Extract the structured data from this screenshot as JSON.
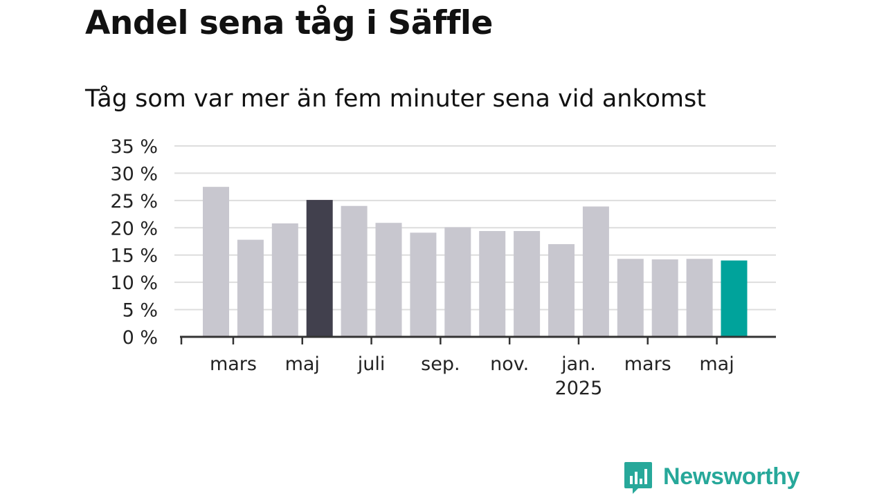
{
  "title": "Andel sena tåg i Säffle",
  "subtitle": "Tåg som var mer än fem minuter sena vid ankomst",
  "brand": {
    "name": "Newsworthy",
    "color": "#27a89a",
    "icon": "bar-chart-speech-bubble-icon"
  },
  "colors": {
    "default_bar": "#c8c7cf",
    "highlight_dark": "#41404d",
    "highlight_latest": "#00a39b",
    "grid": "#dddddd",
    "axis": "#333333"
  },
  "chart_data": {
    "type": "bar",
    "unit": "%",
    "ylim": [
      0,
      35
    ],
    "yticks": [
      0,
      5,
      10,
      15,
      20,
      25,
      30,
      35
    ],
    "ytick_labels": [
      "0 %",
      "5 %",
      "10 %",
      "15 %",
      "20 %",
      "25 %",
      "30 %",
      "35 %"
    ],
    "grid": true,
    "categories": [
      "2024-02",
      "2024-03",
      "2024-04",
      "2024-05",
      "2024-06",
      "2024-07",
      "2024-08",
      "2024-09",
      "2024-10",
      "2024-11",
      "2024-12",
      "2025-01",
      "2025-02",
      "2025-03",
      "2025-04",
      "2025-05"
    ],
    "values": [
      27.5,
      17.8,
      20.8,
      25.1,
      24.0,
      20.9,
      19.1,
      20.1,
      19.4,
      19.4,
      17.0,
      23.9,
      14.3,
      14.2,
      14.3,
      14.0
    ],
    "highlight": {
      "2024-05": "dark",
      "2025-05": "latest"
    },
    "xtick_labels": [
      {
        "category": "2024-03",
        "label": "mars",
        "sub": ""
      },
      {
        "category": "2024-05",
        "label": "maj",
        "sub": ""
      },
      {
        "category": "2024-07",
        "label": "juli",
        "sub": ""
      },
      {
        "category": "2024-09",
        "label": "sep.",
        "sub": ""
      },
      {
        "category": "2024-11",
        "label": "nov.",
        "sub": ""
      },
      {
        "category": "2025-01",
        "label": "jan.",
        "sub": "2025"
      },
      {
        "category": "2025-03",
        "label": "mars",
        "sub": ""
      },
      {
        "category": "2025-05",
        "label": "maj",
        "sub": ""
      }
    ]
  }
}
